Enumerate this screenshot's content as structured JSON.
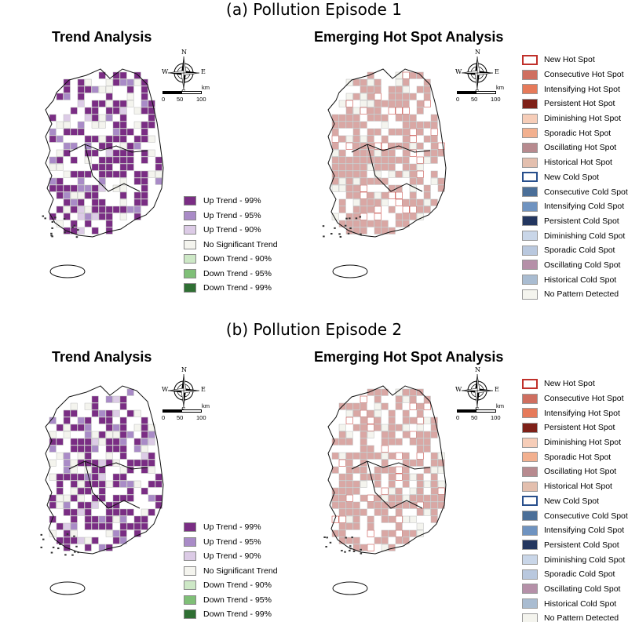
{
  "episodes": [
    {
      "title": "(a) Pollution Episode 1",
      "trend_title": "Trend Analysis",
      "ehsa_title": "Emerging Hot Spot Analysis"
    },
    {
      "title": "(b) Pollution Episode 2",
      "trend_title": "Trend Analysis",
      "ehsa_title": "Emerging Hot Spot Analysis"
    }
  ],
  "compass": {
    "n": "N",
    "s": "S",
    "e": "E",
    "w": "W"
  },
  "scale": {
    "t0": "0",
    "t1": "50",
    "t2": "100",
    "unit": "km"
  },
  "trend_legend": [
    {
      "label": "Up Trend - 99%",
      "color": "#7a2d84"
    },
    {
      "label": "Up Trend - 95%",
      "color": "#a98bc7"
    },
    {
      "label": "Up Trend - 90%",
      "color": "#dccbe6"
    },
    {
      "label": "No Significant Trend",
      "color": "#f4f4ee"
    },
    {
      "label": "Down Trend - 90%",
      "color": "#cde8c6"
    },
    {
      "label": "Down Trend - 95%",
      "color": "#7fbf77"
    },
    {
      "label": "Down Trend - 99%",
      "color": "#2f6f33"
    }
  ],
  "ehsa_legend": [
    {
      "label": "New Hot Spot",
      "color": "#ffffff",
      "border": "#c0302a"
    },
    {
      "label": "Consecutive Hot Spot",
      "color": "#cf6f60",
      "border": "#999999"
    },
    {
      "label": "Intensifying Hot Spot",
      "color": "#e67a5a",
      "border": "#999999"
    },
    {
      "label": "Persistent Hot Spot",
      "color": "#7e2018",
      "border": "#999999"
    },
    {
      "label": "Diminishing Hot Spot",
      "color": "#f6cdb8",
      "border": "#999999"
    },
    {
      "label": "Sporadic Hot Spot",
      "color": "#f2b08f",
      "border": "#999999"
    },
    {
      "label": "Oscillating Hot Spot",
      "color": "#b78a8f",
      "border": "#999999"
    },
    {
      "label": "Historical Hot Spot",
      "color": "#e3bfae",
      "border": "#999999"
    },
    {
      "label": "New Cold Spot",
      "color": "#ffffff",
      "border": "#284f8c"
    },
    {
      "label": "Consecutive Cold Spot",
      "color": "#4b6f98",
      "border": "#999999"
    },
    {
      "label": "Intensifying Cold Spot",
      "color": "#6f93c0",
      "border": "#999999"
    },
    {
      "label": "Persistent Cold Spot",
      "color": "#23365f",
      "border": "#999999"
    },
    {
      "label": "Diminishing Cold Spot",
      "color": "#c9d6e8",
      "border": "#999999"
    },
    {
      "label": "Sporadic Cold Spot",
      "color": "#b9c8de",
      "border": "#999999"
    },
    {
      "label": "Oscillating Cold Spot",
      "color": "#b590a8",
      "border": "#999999"
    },
    {
      "label": "Historical Cold Spot",
      "color": "#a9bcd1",
      "border": "#999999"
    },
    {
      "label": "No Pattern Detected",
      "color": "#f4f4ee",
      "border": "#999999"
    }
  ]
}
